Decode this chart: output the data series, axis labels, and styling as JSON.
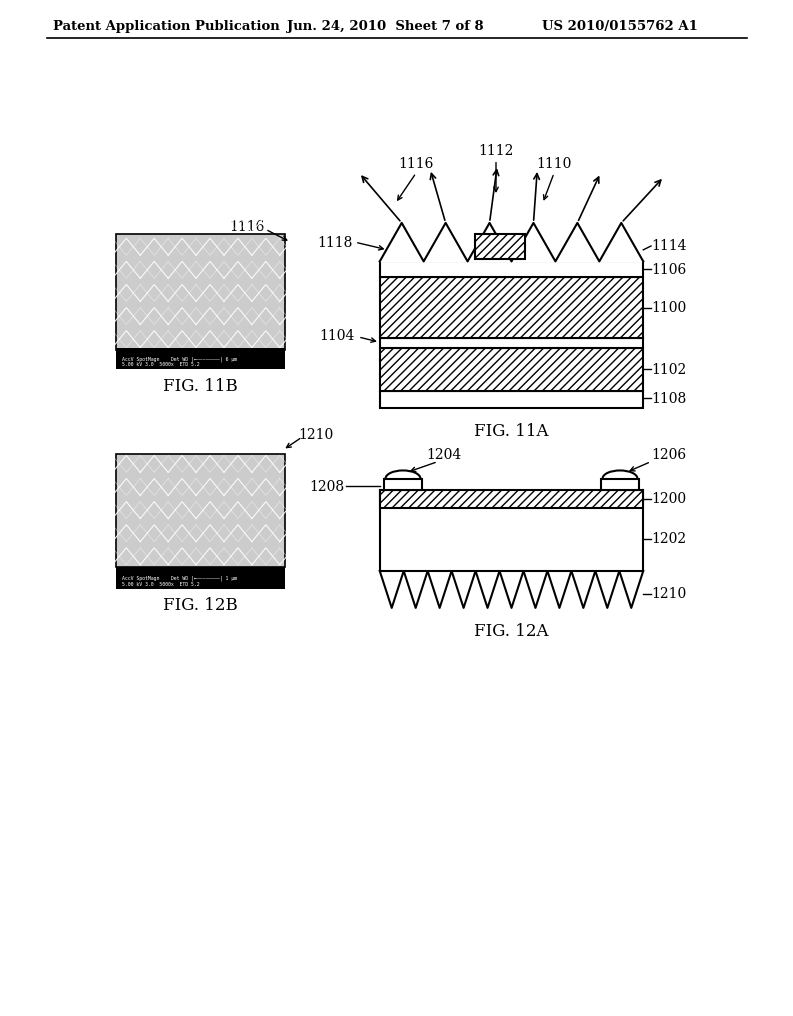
{
  "title_left": "Patent Application Publication",
  "title_mid": "Jun. 24, 2010  Sheet 7 of 8",
  "title_right": "US 2010/0155762 A1",
  "bg_color": "#ffffff",
  "line_color": "#000000",
  "fig11b_caption": "FIG. 11B",
  "fig11a_caption": "FIG. 11A",
  "fig12a_caption": "FIG. 12A",
  "fig12b_caption": "FIG. 12B"
}
